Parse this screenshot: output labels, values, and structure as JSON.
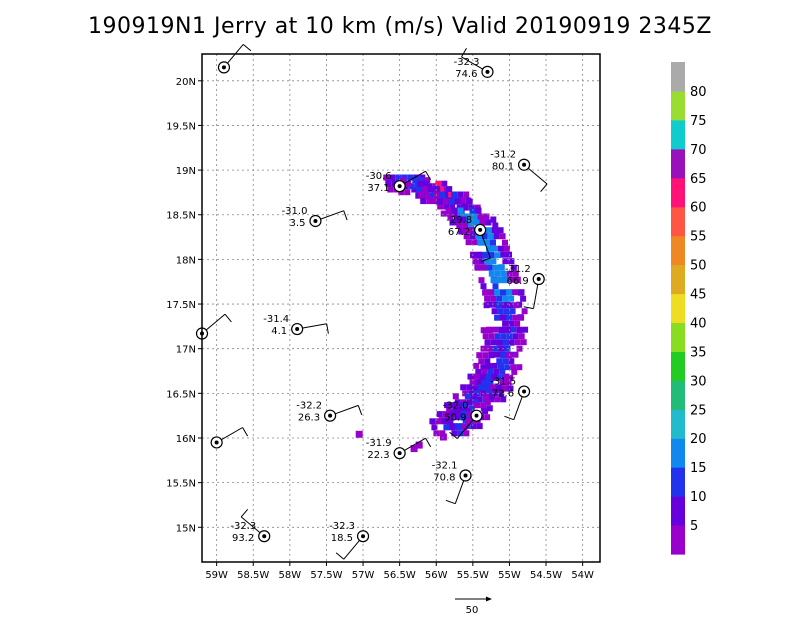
{
  "chart_data": {
    "type": "heatmap",
    "title": "190919N1 Jerry at 10 km (m/s) Valid 20190919 2345Z",
    "xlabel": "",
    "ylabel": "",
    "xlim": [
      59.2,
      54.0
    ],
    "ylim": [
      14.7,
      20.3
    ],
    "x_ticks": [
      "59W",
      "58.5W",
      "58W",
      "57.5W",
      "57W",
      "56.5W",
      "56W",
      "55.5W",
      "55W",
      "54.5W",
      "54W"
    ],
    "y_ticks": [
      "15N",
      "15.5N",
      "16N",
      "16.5N",
      "17N",
      "17.5N",
      "18N",
      "18.5N",
      "19N",
      "19.5N",
      "20N"
    ],
    "grid": true,
    "colorbar": {
      "labels": [
        "5",
        "10",
        "15",
        "20",
        "25",
        "30",
        "35",
        "40",
        "45",
        "50",
        "55",
        "60",
        "65",
        "70",
        "75",
        "80"
      ],
      "colors": [
        "#9900cc",
        "#6600dd",
        "#2233ee",
        "#1188ee",
        "#22bbcc",
        "#22bb77",
        "#22cc22",
        "#88dd22",
        "#eedd22",
        "#ddaa22",
        "#ee8822",
        "#ff5544",
        "#ff1177",
        "#9911bb",
        "#11cccc",
        "#99dd33",
        "#aaaaaa"
      ]
    },
    "stations": [
      {
        "lon": 58.9,
        "lat": 20.15,
        "temp": "",
        "val": ""
      },
      {
        "lon": 55.3,
        "lat": 20.1,
        "temp": "-32.3",
        "val": "74.6"
      },
      {
        "lon": 54.8,
        "lat": 19.06,
        "temp": "-31.2",
        "val": "80.1"
      },
      {
        "lon": 56.5,
        "lat": 18.82,
        "temp": "-30.6",
        "val": "37.1"
      },
      {
        "lon": 57.65,
        "lat": 18.43,
        "temp": "-31.0",
        "val": "3.5"
      },
      {
        "lon": 55.4,
        "lat": 18.33,
        "temp": "-29.8",
        "val": "67.2"
      },
      {
        "lon": 54.6,
        "lat": 17.78,
        "temp": "-31.2",
        "val": "66.9"
      },
      {
        "lon": 57.9,
        "lat": 17.22,
        "temp": "-31.4",
        "val": "4.1"
      },
      {
        "lon": 59.2,
        "lat": 17.17,
        "temp": "",
        "val": ""
      },
      {
        "lon": 54.8,
        "lat": 16.52,
        "temp": "-31.5",
        "val": "72.6"
      },
      {
        "lon": 57.45,
        "lat": 16.25,
        "temp": "-32.2",
        "val": "26.3"
      },
      {
        "lon": 55.45,
        "lat": 16.25,
        "temp": "-32.0",
        "val": "50.9"
      },
      {
        "lon": 59.0,
        "lat": 15.95,
        "temp": "",
        "val": ""
      },
      {
        "lon": 56.5,
        "lat": 15.83,
        "temp": "-31.9",
        "val": "22.3"
      },
      {
        "lon": 55.6,
        "lat": 15.58,
        "temp": "-32.1",
        "val": "70.8"
      },
      {
        "lon": 58.35,
        "lat": 14.9,
        "temp": "-32.3",
        "val": "93.2"
      },
      {
        "lon": 57.0,
        "lat": 14.9,
        "temp": "-32.3",
        "val": "18.5"
      }
    ],
    "reference_vector": "50"
  }
}
